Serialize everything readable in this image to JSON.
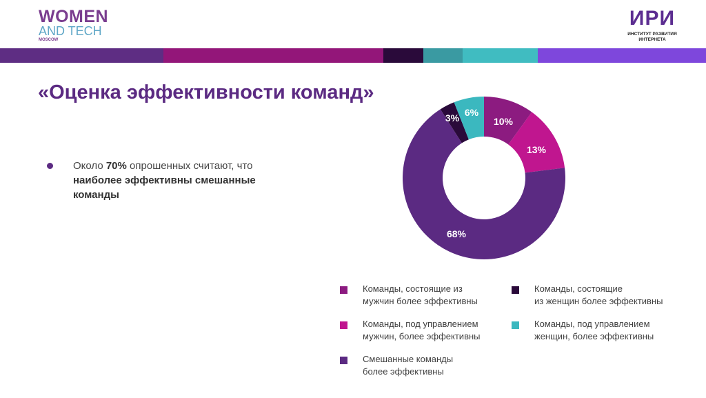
{
  "logo_left": {
    "line1": "WOMEN",
    "line2": "AND TECH",
    "line3": "MOSCOW"
  },
  "logo_right": {
    "mark": "ИРИ",
    "line1": "ИНСТИТУТ РАЗВИТИЯ",
    "line2": "ИНТЕРНЕТА"
  },
  "header_bar_colors": [
    "#5e2d83",
    "#931679",
    "#2a0a3a",
    "#3a9aa2",
    "#40bcc1",
    "#7e47dc"
  ],
  "title": "«Оценка эффективности команд»",
  "bullet": {
    "pre": "Около ",
    "bold1": "70%",
    "mid": " опрошенных считают, что ",
    "bold2": "наиболее эффективны смешанные команды"
  },
  "chart_data": {
    "type": "pie",
    "donut": true,
    "categories": [
      "Команды, состоящие из мужчин более эффективны",
      "Команды, под управлением мужчин, более эффективны",
      "Смешанные команды более эффективны",
      "Команды, состоящие из женщин более эффективны",
      "Команды, под управлением женщин, более эффективны"
    ],
    "values": [
      10,
      13,
      68,
      3,
      6
    ],
    "labels": [
      "10%",
      "13%",
      "68%",
      "3%",
      "6%"
    ],
    "colors": [
      "#8c1b80",
      "#c0168f",
      "#5b2a82",
      "#2a0a3a",
      "#3bb8bf"
    ],
    "legend_placement": "bottom"
  },
  "legend": [
    {
      "l1": "Команды, состоящие из",
      "l2": "мужчин более эффективны"
    },
    {
      "l1": "Команды, под управлением",
      "l2": "мужчин, более эффективны"
    },
    {
      "l1": "Смешанные команды",
      "l2": "более эффективны"
    },
    {
      "l1": "Команды, состоящие",
      "l2": "из женщин более эффективны"
    },
    {
      "l1": "Команды, под управлением",
      "l2": "женщин, более эффективны"
    }
  ]
}
